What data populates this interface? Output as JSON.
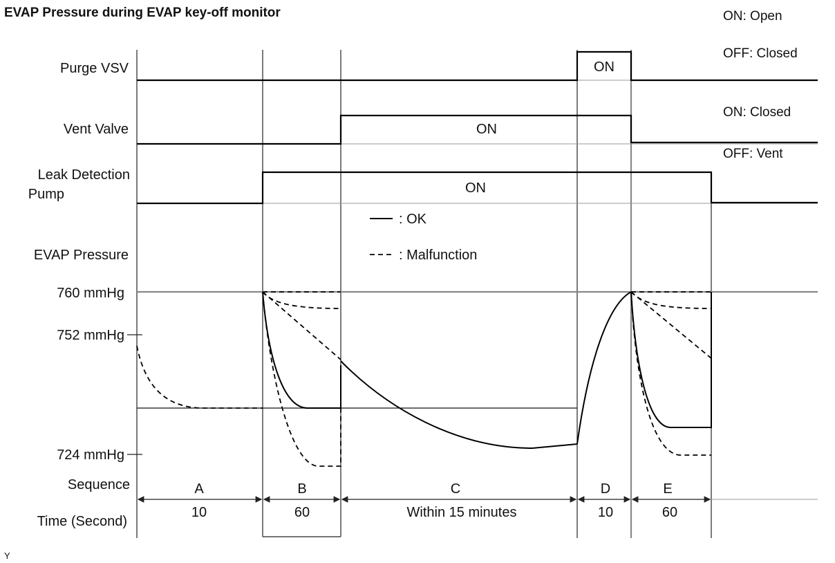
{
  "title": "EVAP Pressure during EVAP key-off monitor",
  "legend_states": {
    "purge_on": "ON: Open",
    "purge_off": "OFF: Closed",
    "vent_on": "ON: Closed",
    "vent_off": "OFF: Vent"
  },
  "signals": {
    "purge_vsv": {
      "label": "Purge VSV",
      "on_label": "ON"
    },
    "vent_valve": {
      "label": "Vent Valve",
      "on_label": "ON"
    },
    "leak_pump": {
      "label_line1": "Leak Detection",
      "label_line2": "Pump",
      "on_label": "ON"
    }
  },
  "pressure": {
    "label": "EVAP Pressure",
    "ticks": [
      "760 mmHg",
      "752 mmHg",
      "724 mmHg"
    ]
  },
  "curve_legend": {
    "ok": ": OK",
    "malfunction": ": Malfunction"
  },
  "sequence": {
    "label": "Sequence",
    "time_label": "Time (Second)",
    "phases": [
      {
        "name": "A",
        "time": "10"
      },
      {
        "name": "B",
        "time": "60"
      },
      {
        "name": "C",
        "time": "Within 15 minutes"
      },
      {
        "name": "D",
        "time": "10"
      },
      {
        "name": "E",
        "time": "60"
      }
    ]
  },
  "footnote": "Y"
}
